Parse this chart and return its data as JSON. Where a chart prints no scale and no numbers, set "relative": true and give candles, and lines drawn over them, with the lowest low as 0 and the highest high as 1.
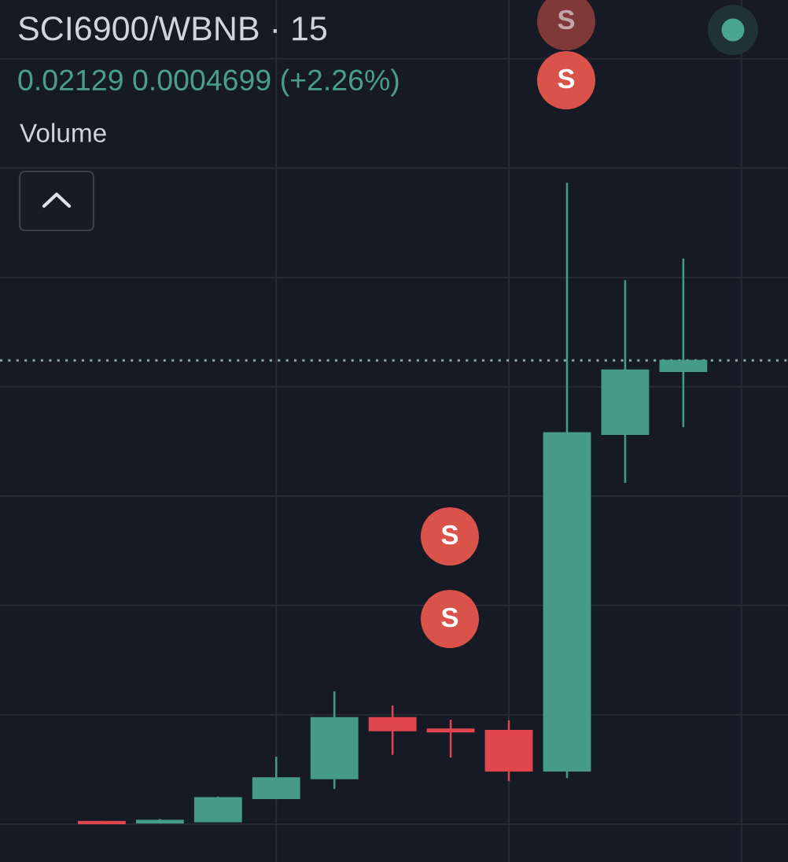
{
  "chart_data": {
    "type": "candlestick",
    "title": "SCI6900/WBNB · 15",
    "subtitle": "0.02129 0.0004699 (+2.26%)",
    "annotations": [
      "Volume",
      "S",
      "S",
      "S",
      "S"
    ],
    "categories": [
      null,
      null,
      null,
      null,
      null,
      null,
      null,
      null,
      null,
      null,
      null
    ],
    "relative": true,
    "tick_labels": false,
    "grid": true,
    "ohlc": [
      [
        0.004,
        0.005,
        0,
        0.001
      ],
      [
        0.002,
        0.008,
        0.001,
        0.006
      ],
      [
        0.004,
        0.043,
        0.004,
        0.041
      ],
      [
        0.04,
        0.105,
        0.039,
        0.072
      ],
      [
        0.071,
        0.207,
        0.055,
        0.166
      ],
      [
        0.166,
        0.185,
        0.108,
        0.146
      ],
      [
        0.148,
        0.163,
        0.104,
        0.144
      ],
      [
        0.146,
        0.162,
        0.067,
        0.083
      ],
      [
        0.083,
        1,
        0.072,
        0.61
      ],
      [
        0.608,
        0.848,
        0.532,
        0.708
      ],
      [
        0.706,
        0.882,
        0.619,
        0.723
      ]
    ],
    "colors": [
      "#e0464e",
      "#469b87",
      "#469b87",
      "#469b87",
      "#469b87",
      "#e0464e",
      "#e0464e",
      "#e0464e",
      "#469b87",
      "#469b87",
      "#469b87"
    ],
    "ref_lines": [
      {
        "axis": "y",
        "value": 0.723,
        "color": "#8aa9a6",
        "line_style": "dotted"
      }
    ]
  }
}
